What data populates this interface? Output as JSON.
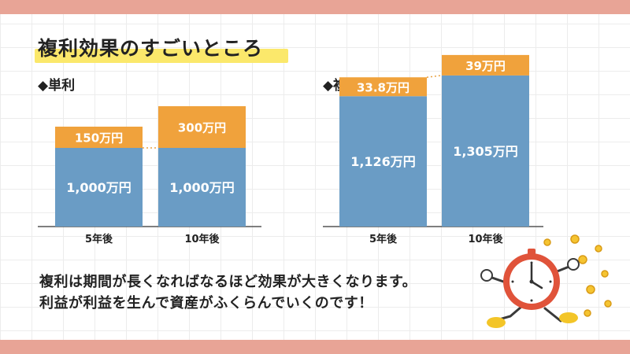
{
  "title": "複利効果のすごいところ",
  "sections": {
    "simple": "◆単利",
    "compound": "◆複利"
  },
  "chart_data": [
    {
      "type": "bar",
      "stacked": true,
      "categories": [
        "5年後",
        "10年後"
      ],
      "series": [
        {
          "values": [
            1000,
            1000
          ],
          "labels": [
            "1,000万円",
            "1,000万円"
          ],
          "color": "#6a9cc5"
        },
        {
          "values": [
            150,
            300
          ],
          "labels": [
            "150万円",
            "300万円"
          ],
          "color": "#f0a23c"
        }
      ],
      "ylim": [
        0,
        1400
      ]
    },
    {
      "type": "bar",
      "stacked": true,
      "categories": [
        "5年後",
        "10年後"
      ],
      "series": [
        {
          "values": [
            1126,
            1305
          ],
          "labels": [
            "1,126万円",
            "1,305万円"
          ],
          "color": "#6a9cc5"
        },
        {
          "values": [
            33.8,
            39
          ],
          "labels": [
            "33.8万円",
            "39万円"
          ],
          "color": "#f0a23c"
        }
      ],
      "ylim": [
        0,
        1400
      ]
    }
  ],
  "body": {
    "line1": "複利は期間が長くなればなるほど効果が大きくなります。",
    "line2": "利益が利益を生んで資産がふくらんでいくのです！"
  },
  "illustration": {
    "icon": "running-clock-icon",
    "coin_icon": "coin-icon"
  },
  "colors": {
    "band": "#e8a496",
    "highlight": "#fbe86b",
    "bar_blue": "#6a9cc5",
    "bar_orange": "#f0a23c"
  }
}
